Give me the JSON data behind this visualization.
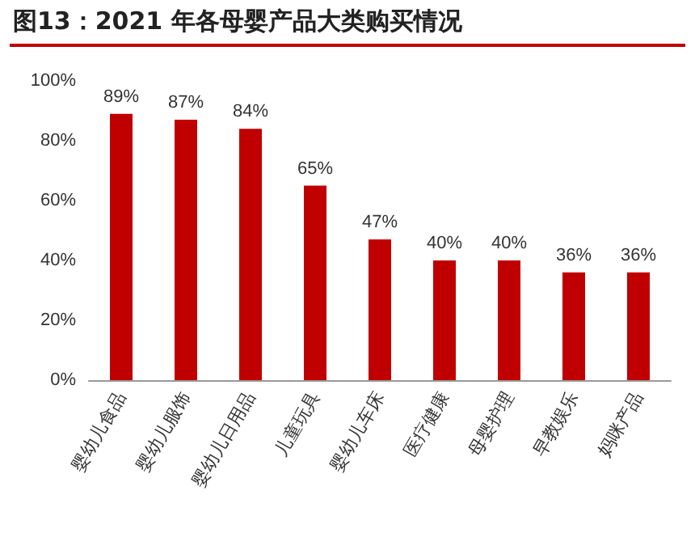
{
  "chart_data": {
    "type": "bar",
    "title": "图13：2021 年各母婴产品大类购买情况",
    "categories": [
      "婴幼儿食品",
      "婴幼儿服饰",
      "婴幼儿日用品",
      "儿童玩具",
      "婴幼儿车床",
      "医疗健康",
      "母婴护理",
      "早教娱乐",
      "妈咪产品"
    ],
    "values": [
      89,
      87,
      84,
      65,
      47,
      40,
      40,
      36,
      36
    ],
    "value_labels": [
      "89%",
      "87%",
      "84%",
      "65%",
      "47%",
      "40%",
      "40%",
      "36%",
      "36%"
    ],
    "color": "#c00000",
    "ylim": [
      0,
      100
    ],
    "yticks": [
      {
        "value": 0,
        "label": "0%"
      },
      {
        "value": 20,
        "label": "20%"
      },
      {
        "value": 40,
        "label": "40%"
      },
      {
        "value": 60,
        "label": "60%"
      },
      {
        "value": 80,
        "label": "80%"
      },
      {
        "value": 100,
        "label": "100%"
      }
    ],
    "grid": false
  }
}
